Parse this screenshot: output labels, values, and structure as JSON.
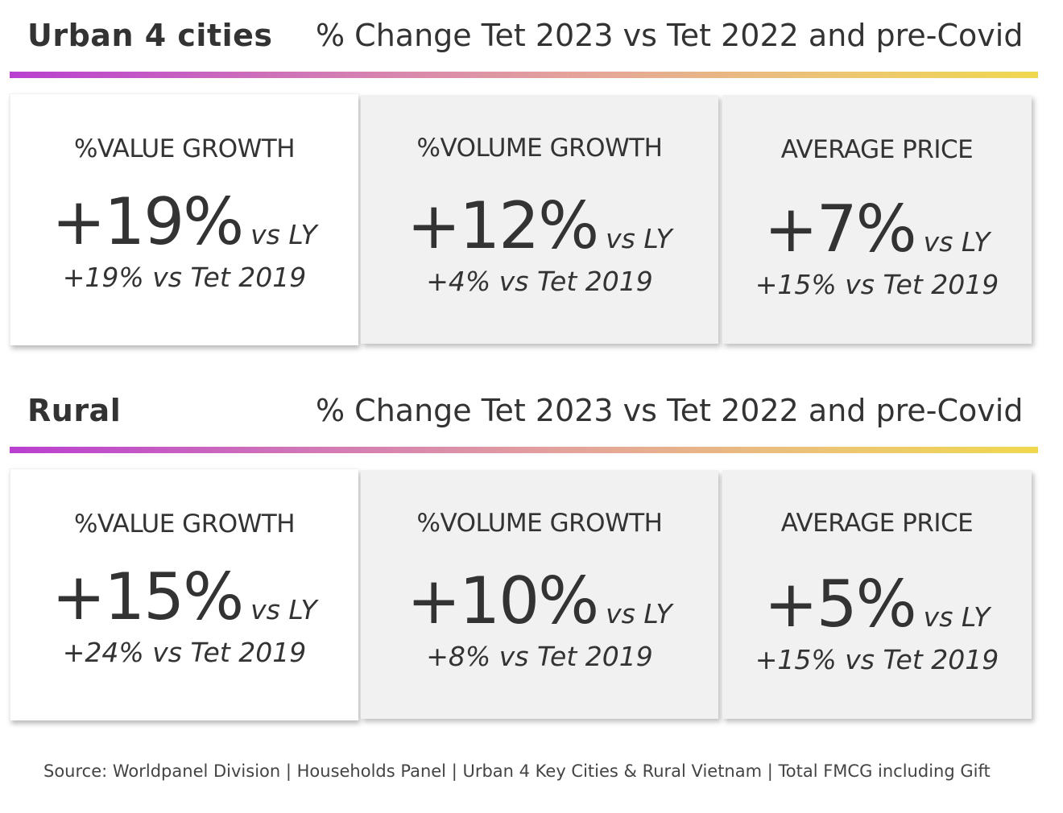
{
  "sections": [
    {
      "title": "Urban 4 cities",
      "subtitle": "% Change Tet 2023 vs Tet 2022 and pre-Covid",
      "cards": [
        {
          "label": "%VALUE GROWTH",
          "value": "+19%",
          "vs_label": "vs LY",
          "sub": "+19% vs Tet 2019"
        },
        {
          "label": "%VOLUME GROWTH",
          "value": "+12%",
          "vs_label": "vs LY",
          "sub": "+4% vs Tet 2019"
        },
        {
          "label": "AVERAGE PRICE",
          "value": "+7%",
          "vs_label": "vs LY",
          "sub": "+15% vs Tet 2019"
        }
      ]
    },
    {
      "title": "Rural",
      "subtitle": "% Change Tet 2023 vs Tet 2022 and pre-Covid",
      "cards": [
        {
          "label": "%VALUE GROWTH",
          "value": "+15%",
          "vs_label": "vs LY",
          "sub": "+24% vs Tet 2019"
        },
        {
          "label": "%VOLUME GROWTH",
          "value": "+10%",
          "vs_label": "vs LY",
          "sub": "+8% vs Tet 2019"
        },
        {
          "label": "AVERAGE PRICE",
          "value": "+5%",
          "vs_label": "vs LY",
          "sub": "+15% vs Tet 2019"
        }
      ]
    }
  ],
  "source": "Source: Worldpanel Division | Households Panel | Urban 4 Key Cities & Rural Vietnam | Total FMCG including Gift",
  "colors": {
    "gradient_start": "#b93fd0",
    "gradient_end": "#f0d84e",
    "card_grey": "#f1f1f1",
    "text": "#333333"
  }
}
